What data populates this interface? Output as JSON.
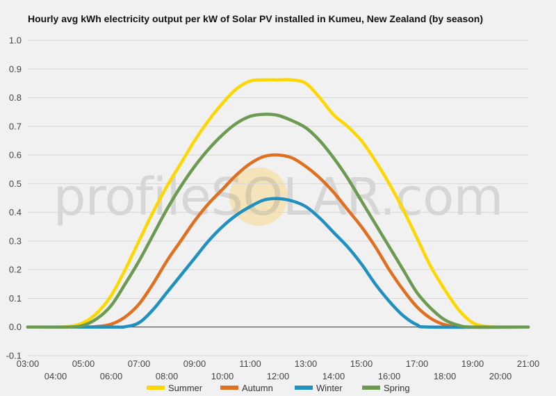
{
  "chart_data": {
    "type": "line",
    "title": "Hourly avg kWh electricity output per kW of Solar PV installed in Kumeu, New Zealand (by season)",
    "watermark": "profileSOLAR.com",
    "ylim": [
      -0.1,
      1.0
    ],
    "yticks": [
      "-0.1",
      "0.0",
      "0.1",
      "0.2",
      "0.3",
      "0.4",
      "0.5",
      "0.6",
      "0.7",
      "0.8",
      "0.9",
      "1.0"
    ],
    "xlim": [
      3,
      21
    ],
    "xticks": [
      "03:00",
      "04:00",
      "05:00",
      "06:00",
      "07:00",
      "08:00",
      "09:00",
      "10:00",
      "11:00",
      "12:00",
      "13:00",
      "14:00",
      "15:00",
      "16:00",
      "17:00",
      "18:00",
      "19:00",
      "20:00",
      "21:00"
    ],
    "legend_position": "bottom",
    "grid": true,
    "series": [
      {
        "name": "Summer",
        "color": "#ffd700",
        "points": [
          [
            3,
            0
          ],
          [
            4,
            0
          ],
          [
            4.5,
            0.002
          ],
          [
            5,
            0.015
          ],
          [
            5.5,
            0.05
          ],
          [
            6,
            0.11
          ],
          [
            6.5,
            0.2
          ],
          [
            7,
            0.3
          ],
          [
            7.5,
            0.4
          ],
          [
            8,
            0.49
          ],
          [
            8.5,
            0.57
          ],
          [
            9,
            0.65
          ],
          [
            9.5,
            0.72
          ],
          [
            10,
            0.78
          ],
          [
            10.5,
            0.83
          ],
          [
            11,
            0.858
          ],
          [
            11.5,
            0.862
          ],
          [
            12,
            0.862
          ],
          [
            12.5,
            0.862
          ],
          [
            13,
            0.85
          ],
          [
            13.5,
            0.8
          ],
          [
            14,
            0.74
          ],
          [
            14.5,
            0.7
          ],
          [
            15,
            0.65
          ],
          [
            15.5,
            0.58
          ],
          [
            16,
            0.5
          ],
          [
            16.5,
            0.41
          ],
          [
            17,
            0.31
          ],
          [
            17.5,
            0.21
          ],
          [
            18,
            0.13
          ],
          [
            18.5,
            0.06
          ],
          [
            19,
            0.015
          ],
          [
            19.5,
            0.002
          ],
          [
            20,
            0
          ],
          [
            21,
            0
          ]
        ]
      },
      {
        "name": "Autumn",
        "color": "#e07020",
        "points": [
          [
            3,
            0
          ],
          [
            5,
            0
          ],
          [
            5.5,
            0.002
          ],
          [
            6,
            0.01
          ],
          [
            6.5,
            0.035
          ],
          [
            7,
            0.08
          ],
          [
            7.5,
            0.15
          ],
          [
            8,
            0.23
          ],
          [
            8.5,
            0.3
          ],
          [
            9,
            0.37
          ],
          [
            9.5,
            0.43
          ],
          [
            10,
            0.48
          ],
          [
            10.5,
            0.53
          ],
          [
            11,
            0.57
          ],
          [
            11.5,
            0.595
          ],
          [
            12,
            0.6
          ],
          [
            12.5,
            0.59
          ],
          [
            13,
            0.56
          ],
          [
            13.5,
            0.52
          ],
          [
            14,
            0.47
          ],
          [
            14.5,
            0.41
          ],
          [
            15,
            0.35
          ],
          [
            15.5,
            0.28
          ],
          [
            16,
            0.2
          ],
          [
            16.5,
            0.13
          ],
          [
            17,
            0.07
          ],
          [
            17.5,
            0.03
          ],
          [
            18,
            0.008
          ],
          [
            18.5,
            0.001
          ],
          [
            19,
            0
          ],
          [
            21,
            0
          ]
        ]
      },
      {
        "name": "Winter",
        "color": "#2090c0",
        "points": [
          [
            3,
            0
          ],
          [
            6,
            0
          ],
          [
            6.5,
            0.001
          ],
          [
            7,
            0.015
          ],
          [
            7.5,
            0.06
          ],
          [
            8,
            0.12
          ],
          [
            8.5,
            0.18
          ],
          [
            9,
            0.24
          ],
          [
            9.5,
            0.3
          ],
          [
            10,
            0.35
          ],
          [
            10.5,
            0.39
          ],
          [
            11,
            0.42
          ],
          [
            11.5,
            0.443
          ],
          [
            12,
            0.448
          ],
          [
            12.5,
            0.44
          ],
          [
            13,
            0.42
          ],
          [
            13.5,
            0.38
          ],
          [
            14,
            0.33
          ],
          [
            14.5,
            0.28
          ],
          [
            15,
            0.22
          ],
          [
            15.5,
            0.15
          ],
          [
            16,
            0.09
          ],
          [
            16.5,
            0.04
          ],
          [
            17,
            0.008
          ],
          [
            17.5,
            0
          ],
          [
            21,
            0
          ]
        ]
      },
      {
        "name": "Spring",
        "color": "#6b9a50",
        "points": [
          [
            3,
            0
          ],
          [
            4.5,
            0
          ],
          [
            5,
            0.006
          ],
          [
            5.5,
            0.03
          ],
          [
            6,
            0.075
          ],
          [
            6.5,
            0.15
          ],
          [
            7,
            0.23
          ],
          [
            7.5,
            0.32
          ],
          [
            8,
            0.41
          ],
          [
            8.5,
            0.49
          ],
          [
            9,
            0.56
          ],
          [
            9.5,
            0.62
          ],
          [
            10,
            0.67
          ],
          [
            10.5,
            0.71
          ],
          [
            11,
            0.735
          ],
          [
            11.5,
            0.742
          ],
          [
            12,
            0.738
          ],
          [
            12.5,
            0.72
          ],
          [
            13,
            0.695
          ],
          [
            13.5,
            0.65
          ],
          [
            14,
            0.59
          ],
          [
            14.5,
            0.52
          ],
          [
            15,
            0.44
          ],
          [
            15.5,
            0.36
          ],
          [
            16,
            0.28
          ],
          [
            16.5,
            0.2
          ],
          [
            17,
            0.12
          ],
          [
            17.5,
            0.065
          ],
          [
            18,
            0.025
          ],
          [
            18.5,
            0.006
          ],
          [
            19,
            0
          ],
          [
            21,
            0
          ]
        ]
      }
    ]
  }
}
